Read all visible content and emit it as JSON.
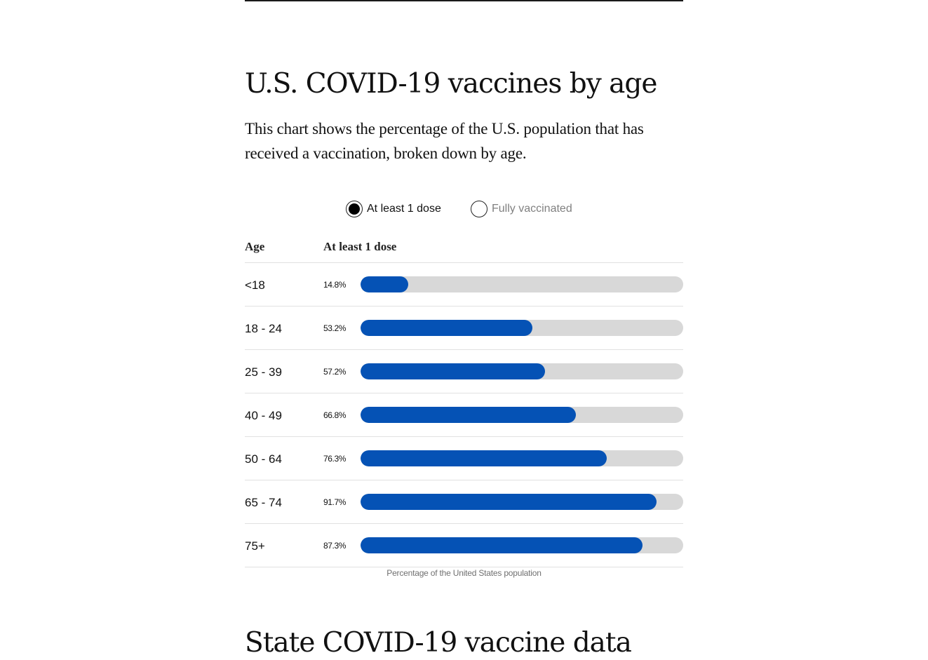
{
  "page": {
    "next_section_title": "State COVID-19 vaccine data"
  },
  "toggle": {
    "options": [
      "At least 1 dose",
      "Fully vaccinated"
    ],
    "selected": "At least 1 dose"
  },
  "colors": {
    "bar_fill": "#0552b5",
    "bar_track": "#d8d8d8"
  },
  "chart_data": {
    "type": "bar",
    "orientation": "horizontal",
    "title": "U.S. COVID-19 vaccines by age",
    "subtitle": "This chart shows the percentage of the U.S. population that has received a vaccination, broken down by age.",
    "column_headers": {
      "category": "Age",
      "value": "At least 1 dose"
    },
    "xlabel": "Percentage of the United States population",
    "xlim": [
      0,
      100
    ],
    "grid": false,
    "categories": [
      "<18",
      "18 - 24",
      "25 - 39",
      "40 - 49",
      "50 - 64",
      "65 - 74",
      "75+"
    ],
    "values": [
      14.8,
      53.2,
      57.2,
      66.8,
      76.3,
      91.7,
      87.3
    ],
    "value_labels": [
      "14.8%",
      "53.2%",
      "57.2%",
      "66.8%",
      "76.3%",
      "91.7%",
      "87.3%"
    ]
  }
}
